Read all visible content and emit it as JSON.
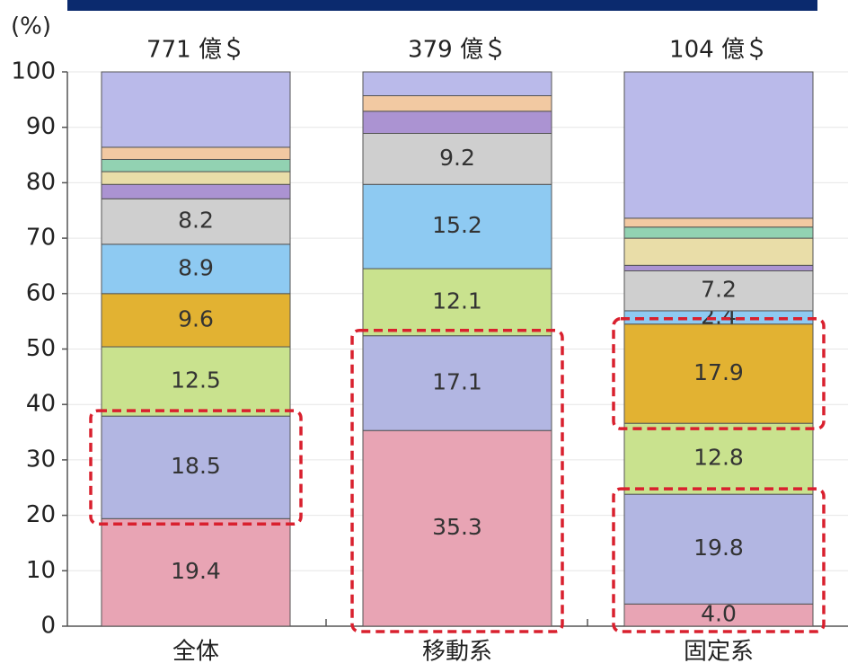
{
  "chart_data": {
    "type": "stacked_bar",
    "y_label": "(%)",
    "categories": [
      "全体",
      "移動系",
      "固定系"
    ],
    "top_labels": [
      "771 億＄",
      "379 億＄",
      "104 億＄"
    ],
    "ylim": [
      0,
      100
    ],
    "yticks": [
      0,
      10,
      20,
      30,
      40,
      50,
      60,
      70,
      80,
      90,
      100
    ],
    "grid": true,
    "series": [
      {
        "color": "#e8a4b4",
        "values": [
          19.4,
          35.3,
          4.0
        ],
        "value_labels": [
          "19.4",
          "35.3",
          "4.0"
        ]
      },
      {
        "color": "#b2b6e2",
        "values": [
          18.5,
          17.1,
          19.8
        ],
        "value_labels": [
          "18.5",
          "17.1",
          "19.8"
        ]
      },
      {
        "color": "#c9e28e",
        "values": [
          12.5,
          12.1,
          12.8
        ],
        "value_labels": [
          "12.5",
          "12.1",
          "12.8"
        ]
      },
      {
        "color": "#e2b232",
        "values": [
          9.6,
          null,
          17.9
        ],
        "value_labels": [
          "9.6",
          null,
          "17.9"
        ]
      },
      {
        "color": "#8ecaf2",
        "values": [
          8.9,
          15.2,
          2.4
        ],
        "value_labels": [
          "8.9",
          "15.2",
          "2.4"
        ]
      },
      {
        "color": "#cfcfcf",
        "values": [
          8.2,
          9.2,
          7.2
        ],
        "value_labels": [
          "8.2",
          "9.2",
          "7.2"
        ]
      },
      {
        "color": "#ab93d2",
        "values": [
          2.6,
          4.0,
          1.0
        ]
      },
      {
        "color": "#e9dda8",
        "values": [
          2.3,
          null,
          4.9
        ]
      },
      {
        "color": "#92d2b2",
        "values": [
          2.2,
          null,
          2.0
        ]
      },
      {
        "color": "#f2c9a2",
        "values": [
          2.2,
          2.8,
          1.6
        ]
      },
      {
        "color": "#babaea",
        "values": [
          13.6,
          4.3,
          26.4
        ]
      }
    ]
  }
}
